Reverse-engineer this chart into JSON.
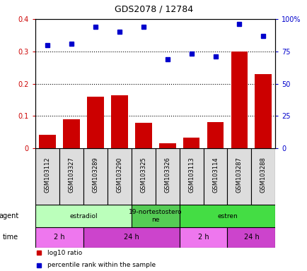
{
  "title": "GDS2078 / 12784",
  "samples": [
    "GSM103112",
    "GSM103327",
    "GSM103289",
    "GSM103290",
    "GSM103325",
    "GSM103326",
    "GSM103113",
    "GSM103114",
    "GSM103287",
    "GSM103288"
  ],
  "log10_ratio": [
    0.042,
    0.09,
    0.16,
    0.165,
    0.08,
    0.015,
    0.033,
    0.082,
    0.3,
    0.23
  ],
  "percentile_right": [
    80,
    81,
    94,
    90,
    94,
    69,
    73,
    71,
    96,
    87
  ],
  "bar_color": "#cc0000",
  "dot_color": "#0000cc",
  "ylim_left": [
    0,
    0.4
  ],
  "ylim_right": [
    0,
    100
  ],
  "yticks_left": [
    0,
    0.1,
    0.2,
    0.3,
    0.4
  ],
  "yticks_right": [
    0,
    25,
    50,
    75,
    100
  ],
  "ytick_labels_left": [
    "0",
    "0.1",
    "0.2",
    "0.3",
    "0.4"
  ],
  "ytick_labels_right": [
    "0",
    "25",
    "50",
    "75",
    "100%"
  ],
  "agent_groups": [
    {
      "label": "estradiol",
      "start": 0,
      "end": 4,
      "color": "#bbffbb"
    },
    {
      "label": "19-nortestostero\nne",
      "start": 4,
      "end": 6,
      "color": "#55cc55"
    },
    {
      "label": "estren",
      "start": 6,
      "end": 10,
      "color": "#44dd44"
    }
  ],
  "time_groups": [
    {
      "label": "2 h",
      "start": 0,
      "end": 2,
      "color": "#ee77ee"
    },
    {
      "label": "24 h",
      "start": 2,
      "end": 6,
      "color": "#cc44cc"
    },
    {
      "label": "2 h",
      "start": 6,
      "end": 8,
      "color": "#ee77ee"
    },
    {
      "label": "24 h",
      "start": 8,
      "end": 10,
      "color": "#cc44cc"
    }
  ],
  "legend_bar_label": "log10 ratio",
  "legend_dot_label": "percentile rank within the sample",
  "agent_label": "agent",
  "time_label": "time",
  "ticklabel_color": "#bbbbbb"
}
